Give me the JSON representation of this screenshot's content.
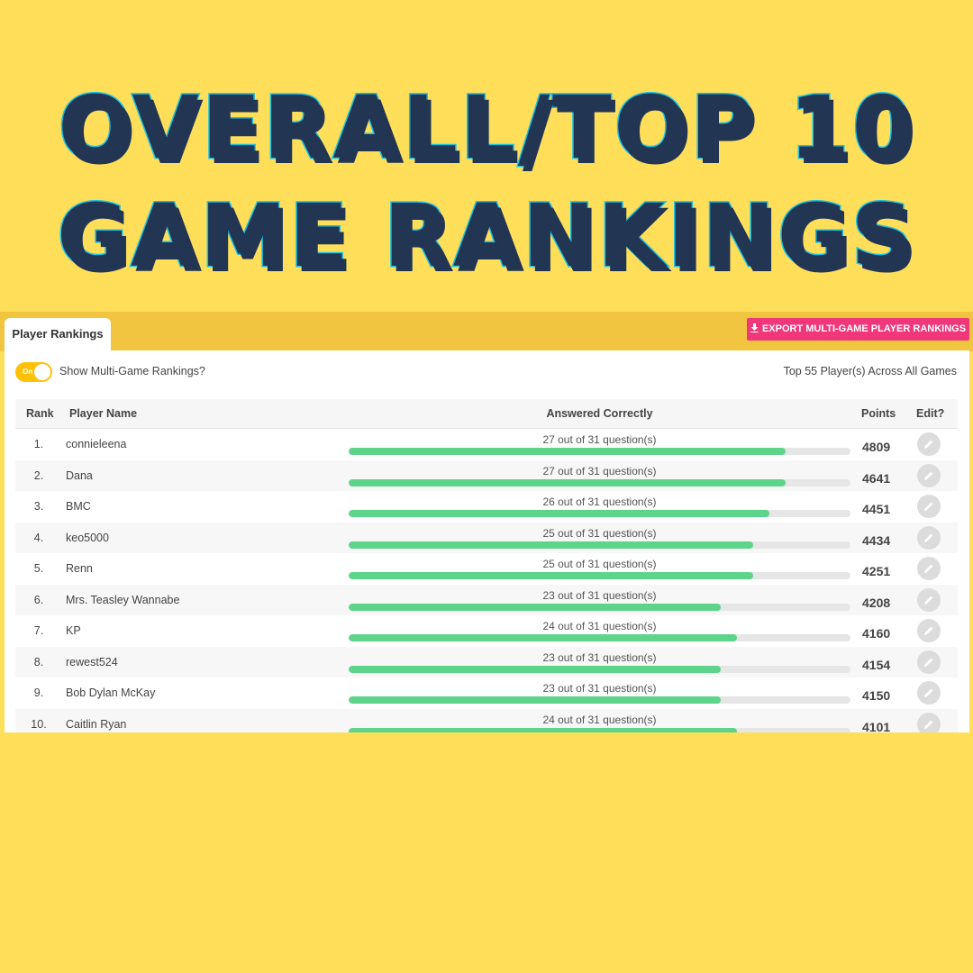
{
  "headline": {
    "line1": "OVERALL/TOP 10",
    "line2": "GAME RANKINGS"
  },
  "tab": {
    "label": "Player Rankings"
  },
  "export_button": {
    "label": "EXPORT MULTI-GAME PLAYER RANKINGS",
    "icon": "download-icon"
  },
  "toggle": {
    "state_label": "On",
    "label": "Show Multi-Game Rankings?"
  },
  "summary": "Top 55 Player(s) Across All Games",
  "columns": {
    "rank": "Rank",
    "player_name": "Player Name",
    "answered": "Answered Correctly",
    "points": "Points",
    "edit": "Edit?"
  },
  "colors": {
    "background": "#FFDE59",
    "headline_fill": "#223553",
    "headline_outline": "#18C1E6",
    "export_button": "#EF3779",
    "toggle": "#FFC107",
    "progress_fill": "#5ED38A"
  },
  "total_questions": 31,
  "players": [
    {
      "rank": "1.",
      "name": "connieleena",
      "answered": "27 out of 31 question(s)",
      "correct": 27,
      "points": "4809"
    },
    {
      "rank": "2.",
      "name": "Dana",
      "answered": "27 out of 31 question(s)",
      "correct": 27,
      "points": "4641"
    },
    {
      "rank": "3.",
      "name": "BMC",
      "answered": "26 out of 31 question(s)",
      "correct": 26,
      "points": "4451"
    },
    {
      "rank": "4.",
      "name": "keo5000",
      "answered": "25 out of 31 question(s)",
      "correct": 25,
      "points": "4434"
    },
    {
      "rank": "5.",
      "name": "Renn",
      "answered": "25 out of 31 question(s)",
      "correct": 25,
      "points": "4251"
    },
    {
      "rank": "6.",
      "name": "Mrs. Teasley Wannabe",
      "answered": "23 out of 31 question(s)",
      "correct": 23,
      "points": "4208"
    },
    {
      "rank": "7.",
      "name": "KP",
      "answered": "24 out of 31 question(s)",
      "correct": 24,
      "points": "4160"
    },
    {
      "rank": "8.",
      "name": "rewest524",
      "answered": "23 out of 31 question(s)",
      "correct": 23,
      "points": "4154"
    },
    {
      "rank": "9.",
      "name": "Bob Dylan McKay",
      "answered": "23 out of 31 question(s)",
      "correct": 23,
      "points": "4150"
    },
    {
      "rank": "10.",
      "name": "Caitlin Ryan",
      "answered": "24 out of 31 question(s)",
      "correct": 24,
      "points": "4101"
    }
  ]
}
